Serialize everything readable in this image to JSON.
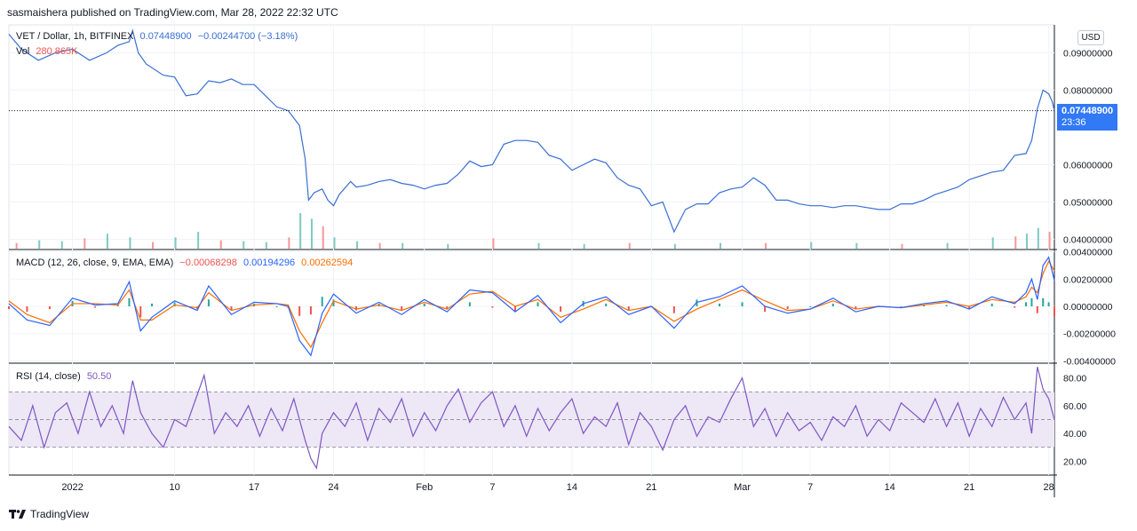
{
  "header": {
    "published": "sasmaishera published on TradingView.com, Mar 28, 2022 22:32 UTC"
  },
  "brand": {
    "name": "TradingView",
    "icon": "tradingview-logo-icon"
  },
  "colors": {
    "price_line": "#3a6fd1",
    "macd_line": "#2962ff",
    "signal_line": "#ff6d00",
    "hist_pos": "#26a69a",
    "hist_neg": "#ef5350",
    "rsi_line": "#7e57c2",
    "rsi_band": "#ede7f6",
    "vol_up": "#26a69a",
    "vol_down": "#ef5350",
    "tag": "#3179f5"
  },
  "price_legend": {
    "symbol": "VET / Dollar, 1h, BITFINEX",
    "close": "0.07448900",
    "change": "−0.00244700 (−3.18%)",
    "vol_label": "Vol",
    "vol_value": "280.865K"
  },
  "macd_legend": {
    "title": "MACD (12, 26, close, 9, EMA, EMA)",
    "hist": "−0.00068298",
    "macd": "0.00194296",
    "signal": "0.00262594"
  },
  "rsi_legend": {
    "title": "RSI (14, close)",
    "value": "50.50"
  },
  "currency_button": "USD",
  "price_tag": {
    "value": "0.07448900",
    "countdown": "23:36"
  },
  "chart_data": [
    {
      "type": "line",
      "title": "VET / Dollar, 1h, BITFINEX",
      "ylim": [
        0.0375,
        0.0975
      ],
      "y_ticks": [
        "0.04000000",
        "0.05000000",
        "0.06000000",
        "0.08000000",
        "0.09000000"
      ],
      "x_ticks": [
        "2022",
        "10",
        "17",
        "24",
        "Feb",
        "7",
        "14",
        "21",
        "Mar",
        "7",
        "14",
        "21",
        "28"
      ],
      "x_tick_days": [
        1,
        10,
        17,
        24,
        32,
        38,
        45,
        52,
        60,
        66,
        73,
        80,
        87
      ],
      "xlim_days": [
        -4.6,
        87.5
      ],
      "series": [
        {
          "name": "",
          "x_days": [
            -4.6,
            -3.5,
            -2,
            -0.5,
            1,
            2.5,
            4,
            5,
            6,
            6.3,
            6.8,
            7.5,
            9,
            10,
            11,
            12,
            13,
            14,
            15,
            16,
            17,
            18,
            19,
            20,
            21,
            21.5,
            21.8,
            22.3,
            23,
            23.5,
            24,
            24.5,
            25.5,
            26,
            27,
            28,
            29,
            30,
            31,
            32,
            33,
            34,
            35,
            36,
            37,
            38,
            39,
            40,
            41,
            42,
            43,
            44,
            45,
            46,
            47,
            48,
            49,
            50,
            51,
            52,
            53,
            54,
            55,
            56,
            57,
            58,
            59,
            60,
            61,
            62,
            63,
            64,
            65,
            66,
            67,
            68,
            69,
            70,
            71,
            72,
            73,
            74,
            75,
            76,
            77,
            78,
            79,
            80,
            81,
            82,
            83,
            84,
            85,
            85.5,
            86,
            86.5,
            87,
            87.3,
            87.5
          ],
          "values": [
            0.095,
            0.091,
            0.088,
            0.09,
            0.091,
            0.088,
            0.09,
            0.092,
            0.093,
            0.096,
            0.09,
            0.087,
            0.084,
            0.0835,
            0.0785,
            0.079,
            0.0825,
            0.082,
            0.083,
            0.0815,
            0.0815,
            0.0785,
            0.0755,
            0.0745,
            0.0705,
            0.0615,
            0.0505,
            0.0525,
            0.0535,
            0.0505,
            0.049,
            0.052,
            0.0555,
            0.054,
            0.0545,
            0.0555,
            0.056,
            0.055,
            0.0545,
            0.0535,
            0.0545,
            0.055,
            0.0575,
            0.061,
            0.0595,
            0.06,
            0.0655,
            0.0665,
            0.0665,
            0.066,
            0.0625,
            0.0615,
            0.0585,
            0.06,
            0.0615,
            0.0605,
            0.0565,
            0.0545,
            0.0535,
            0.049,
            0.05,
            0.042,
            0.048,
            0.0495,
            0.0495,
            0.0525,
            0.0535,
            0.054,
            0.0565,
            0.0545,
            0.0505,
            0.0505,
            0.0495,
            0.049,
            0.049,
            0.0485,
            0.049,
            0.049,
            0.0485,
            0.048,
            0.048,
            0.0495,
            0.0495,
            0.0505,
            0.052,
            0.053,
            0.054,
            0.056,
            0.057,
            0.058,
            0.0585,
            0.0625,
            0.063,
            0.0665,
            0.075,
            0.08,
            0.079,
            0.077,
            0.0745
          ]
        }
      ],
      "last_value": 0.074489
    },
    {
      "type": "bar",
      "title": "Vol",
      "note": "volume bars along the bottom of the price pane",
      "x_days": [
        -4,
        -2,
        0,
        2,
        4,
        6,
        8,
        10,
        12,
        14,
        16,
        18,
        20,
        21,
        22,
        23,
        24,
        26,
        28,
        30,
        34,
        38,
        42,
        46,
        50,
        54,
        58,
        62,
        66,
        70,
        74,
        78,
        82,
        84,
        85,
        86,
        87
      ],
      "values": [
        30,
        45,
        40,
        55,
        80,
        60,
        35,
        60,
        90,
        45,
        40,
        35,
        60,
        190,
        160,
        120,
        60,
        40,
        30,
        30,
        25,
        55,
        30,
        25,
        30,
        25,
        30,
        30,
        35,
        30,
        25,
        30,
        60,
        65,
        80,
        110,
        90
      ]
    },
    {
      "type": "line",
      "title": "MACD (12, 26, close, 9, EMA, EMA)",
      "ylim": [
        -0.0041,
        0.0041
      ],
      "y_ticks": [
        "0.00400000",
        "0.00200000",
        "0.00000000",
        "-0.00200000",
        "-0.00400000"
      ],
      "series": [
        {
          "name": "MACD",
          "x_days": [
            -4.6,
            -3,
            -1,
            1,
            3,
            5,
            6,
            7,
            8,
            10,
            12,
            13,
            15,
            17,
            19,
            20,
            21,
            22,
            23,
            24,
            26,
            28,
            30,
            32,
            34,
            36,
            38,
            40,
            42,
            44,
            46,
            48,
            50,
            52,
            54,
            56,
            58,
            60,
            62,
            64,
            66,
            68,
            70,
            72,
            74,
            76,
            78,
            80,
            82,
            84,
            85,
            85.5,
            86,
            86.5,
            87,
            87.5
          ],
          "values": [
            0.0002,
            -0.001,
            -0.0014,
            0.0006,
            0.0001,
            0.0002,
            0.0018,
            -0.0018,
            -0.0008,
            0.0004,
            -0.0003,
            0.0015,
            -0.0006,
            0.0003,
            0.0002,
            0.0,
            -0.0025,
            -0.0036,
            -0.0005,
            0.0009,
            -0.0005,
            0.0003,
            -0.0006,
            0.0005,
            -0.0004,
            0.0012,
            0.001,
            -0.0004,
            0.0008,
            -0.0012,
            0.0002,
            0.0007,
            -0.0006,
            0.0,
            -0.0016,
            0.0003,
            0.0007,
            0.0015,
            0.0,
            -0.0005,
            -0.0002,
            0.0006,
            -0.0004,
            0.0,
            -0.0001,
            0.0002,
            0.0004,
            -0.0002,
            0.0007,
            0.0002,
            0.001,
            0.002,
            0.0005,
            0.003,
            0.0036,
            0.0019
          ]
        },
        {
          "name": "Signal",
          "x_days": [
            -4.6,
            -3,
            -1,
            1,
            3,
            5,
            6,
            7,
            8,
            10,
            12,
            13,
            15,
            17,
            19,
            20,
            21,
            22,
            23,
            24,
            26,
            28,
            30,
            32,
            34,
            36,
            38,
            40,
            42,
            44,
            46,
            48,
            50,
            52,
            54,
            56,
            58,
            60,
            62,
            64,
            66,
            68,
            70,
            72,
            74,
            76,
            78,
            80,
            82,
            84,
            85,
            85.5,
            86,
            86.5,
            87,
            87.5
          ],
          "values": [
            0.0004,
            -0.0006,
            -0.0012,
            0.0002,
            0.0002,
            0.0001,
            0.0012,
            -0.001,
            -0.001,
            0.0001,
            -0.0001,
            0.001,
            -0.0003,
            0.0001,
            0.0002,
            0.0001,
            -0.0018,
            -0.003,
            -0.0012,
            0.0004,
            -0.0002,
            0.0001,
            -0.0003,
            0.0003,
            -0.0002,
            0.0009,
            0.0011,
            0.0,
            0.0005,
            -0.0008,
            -0.0002,
            0.0005,
            -0.0003,
            0.0,
            -0.0011,
            -0.0002,
            0.0005,
            0.0012,
            0.0004,
            -0.0003,
            -0.0002,
            0.0004,
            -0.0002,
            0.0,
            -0.0001,
            0.0001,
            0.0003,
            0.0,
            0.0005,
            0.0003,
            0.0007,
            0.0014,
            0.001,
            0.0024,
            0.0033,
            0.0026
          ]
        }
      ],
      "histogram_last": -0.00068298
    },
    {
      "type": "line",
      "title": "RSI (14, close)",
      "ylim": [
        10,
        90
      ],
      "y_ticks": [
        "80.00",
        "60.00",
        "40.00",
        "20.00"
      ],
      "band": [
        30,
        70
      ],
      "midline": 50,
      "series": [
        {
          "name": "RSI",
          "x_days": [
            -4.6,
            -3.5,
            -2.5,
            -1.5,
            -0.5,
            0.5,
            1.5,
            2.5,
            3.5,
            4.5,
            5.5,
            6.3,
            7,
            8,
            9,
            10,
            11,
            12,
            12.6,
            13.5,
            14.5,
            15.5,
            16.5,
            17.5,
            18.5,
            19.5,
            20.5,
            21.5,
            22,
            22.5,
            23,
            24,
            25,
            26,
            27,
            28,
            29,
            30,
            31,
            32,
            33,
            34,
            35,
            36,
            37,
            38,
            39,
            40,
            41,
            42,
            43,
            44,
            45,
            46,
            47,
            48,
            49,
            50,
            51,
            52,
            53,
            54,
            55,
            56,
            57,
            58,
            59,
            60,
            61,
            62,
            63,
            64,
            65,
            66,
            67,
            68,
            69,
            70,
            71,
            72,
            73,
            74,
            75,
            76,
            77,
            78,
            79,
            80,
            81,
            82,
            83,
            84,
            85,
            85.5,
            86,
            86.5,
            87,
            87.5
          ],
          "values": [
            45,
            35,
            60,
            30,
            55,
            62,
            40,
            70,
            45,
            60,
            40,
            78,
            55,
            40,
            30,
            50,
            45,
            68,
            82,
            40,
            55,
            45,
            60,
            38,
            58,
            42,
            65,
            35,
            22,
            15,
            40,
            55,
            45,
            62,
            35,
            58,
            48,
            65,
            38,
            55,
            42,
            60,
            72,
            48,
            62,
            70,
            45,
            60,
            38,
            58,
            42,
            55,
            65,
            40,
            52,
            45,
            62,
            32,
            55,
            45,
            28,
            50,
            60,
            38,
            52,
            48,
            65,
            80,
            45,
            58,
            38,
            55,
            42,
            48,
            35,
            52,
            45,
            60,
            38,
            50,
            42,
            62,
            55,
            48,
            65,
            45,
            62,
            38,
            58,
            45,
            66,
            50,
            62,
            40,
            88,
            72,
            65,
            50
          ]
        }
      ]
    }
  ]
}
